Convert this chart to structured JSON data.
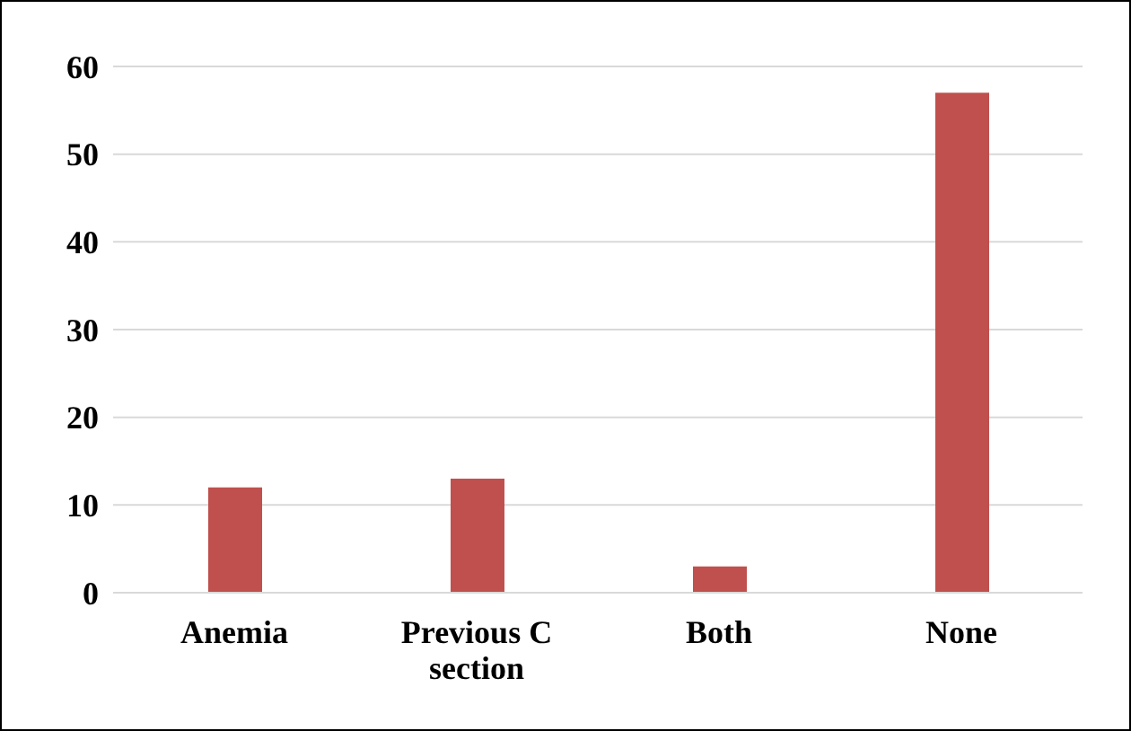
{
  "chart_data": {
    "type": "bar",
    "categories": [
      "Anemia",
      "Previous C section",
      "Both",
      "None"
    ],
    "series": [
      {
        "color": "#c0504d",
        "values": [
          12,
          13,
          3,
          57
        ]
      }
    ],
    "ylim": [
      0,
      60
    ],
    "yticks": [
      0,
      10,
      20,
      30,
      40,
      50,
      60
    ],
    "grid": "y",
    "legend": false
  }
}
